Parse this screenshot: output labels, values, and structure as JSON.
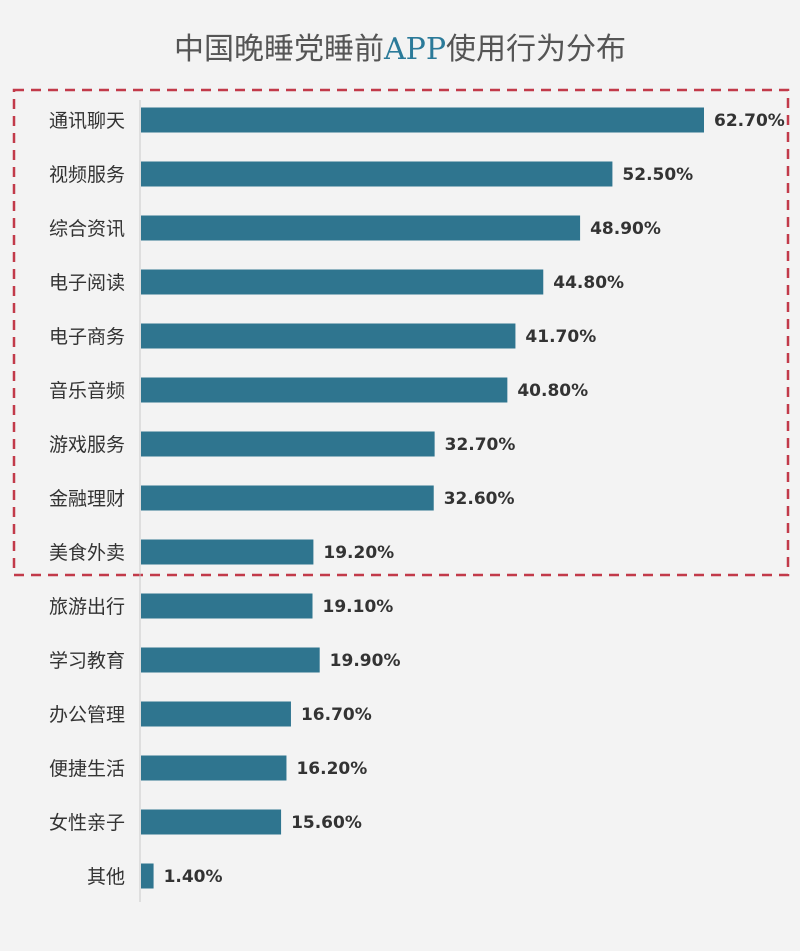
{
  "title": {
    "part1": "中国晚睡党睡前",
    "part2": "APP",
    "part3": "使用行为分布"
  },
  "colors": {
    "bar": "#2f758f",
    "highlight_box": "#c23a4a",
    "background": "#f3f3f3",
    "title_accent": "#2b7a99"
  },
  "chart_data": {
    "type": "bar",
    "orientation": "horizontal",
    "title": "中国晚睡党睡前APP使用行为分布",
    "categories": [
      "通讯聊天",
      "视频服务",
      "综合资讯",
      "电子阅读",
      "电子商务",
      "音乐音频",
      "游戏服务",
      "金融理财",
      "美食外卖",
      "旅游出行",
      "学习教育",
      "办公管理",
      "便捷生活",
      "女性亲子",
      "其他"
    ],
    "values": [
      62.7,
      52.5,
      48.9,
      44.8,
      41.7,
      40.8,
      32.7,
      32.6,
      19.2,
      19.1,
      19.9,
      16.7,
      16.2,
      15.6,
      1.4
    ],
    "value_labels": [
      "62.70%",
      "52.50%",
      "48.90%",
      "44.80%",
      "41.70%",
      "40.80%",
      "32.70%",
      "32.60%",
      "19.20%",
      "19.10%",
      "19.90%",
      "16.70%",
      "16.20%",
      "15.60%",
      "1.40%"
    ],
    "highlighted_range": [
      0,
      8
    ],
    "grid": false,
    "legend": "none"
  }
}
